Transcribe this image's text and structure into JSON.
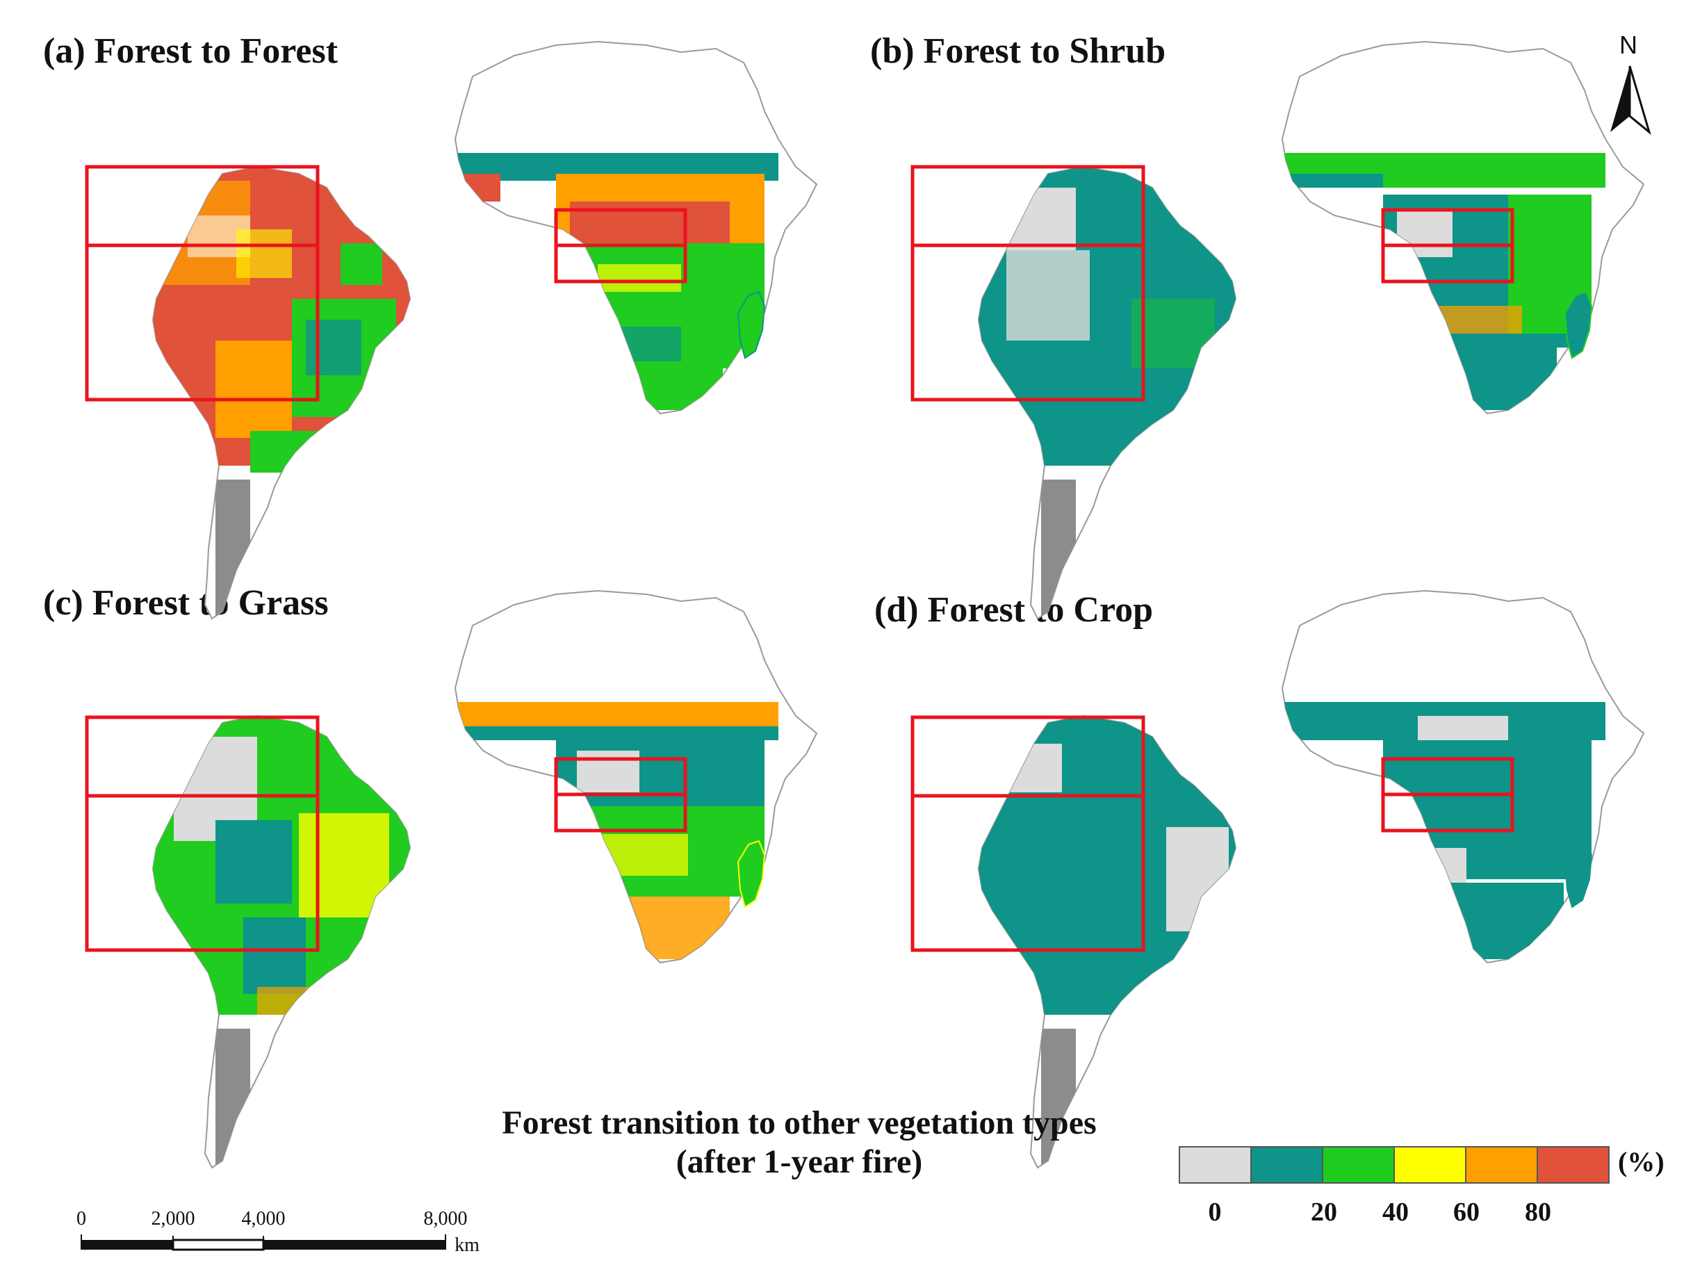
{
  "panels": [
    {
      "id": "a",
      "title": "(a) Forest to Forest",
      "dominant": "red-orange"
    },
    {
      "id": "b",
      "title": "(b) Forest to Shrub",
      "dominant": "teal"
    },
    {
      "id": "c",
      "title": "(c) Forest to Grass",
      "dominant": "green-yellow"
    },
    {
      "id": "d",
      "title": "(d) Forest to Crop",
      "dominant": "teal"
    }
  ],
  "legend": {
    "title_line1": "Forest transition to other vegetation types",
    "title_line2": "(after 1-year fire)",
    "unit": "(%)",
    "ticks": [
      "0",
      "20",
      "40",
      "60",
      "80"
    ],
    "class_colors": [
      "#dcdcdc",
      "#0e9488",
      "#1fcc1f",
      "#ffff00",
      "#ff9f00",
      "#e0523a"
    ]
  },
  "scale_bar": {
    "labels": [
      "0",
      "2,000",
      "4,000",
      "8,000"
    ],
    "unit": "km"
  },
  "north_arrow": {
    "label": "N"
  },
  "colors": {
    "highlight_box": "#e8141e",
    "country_border": "#9a9a9a",
    "land_nodata": "#ffffff",
    "patagonia": "#8c8c8c"
  }
}
